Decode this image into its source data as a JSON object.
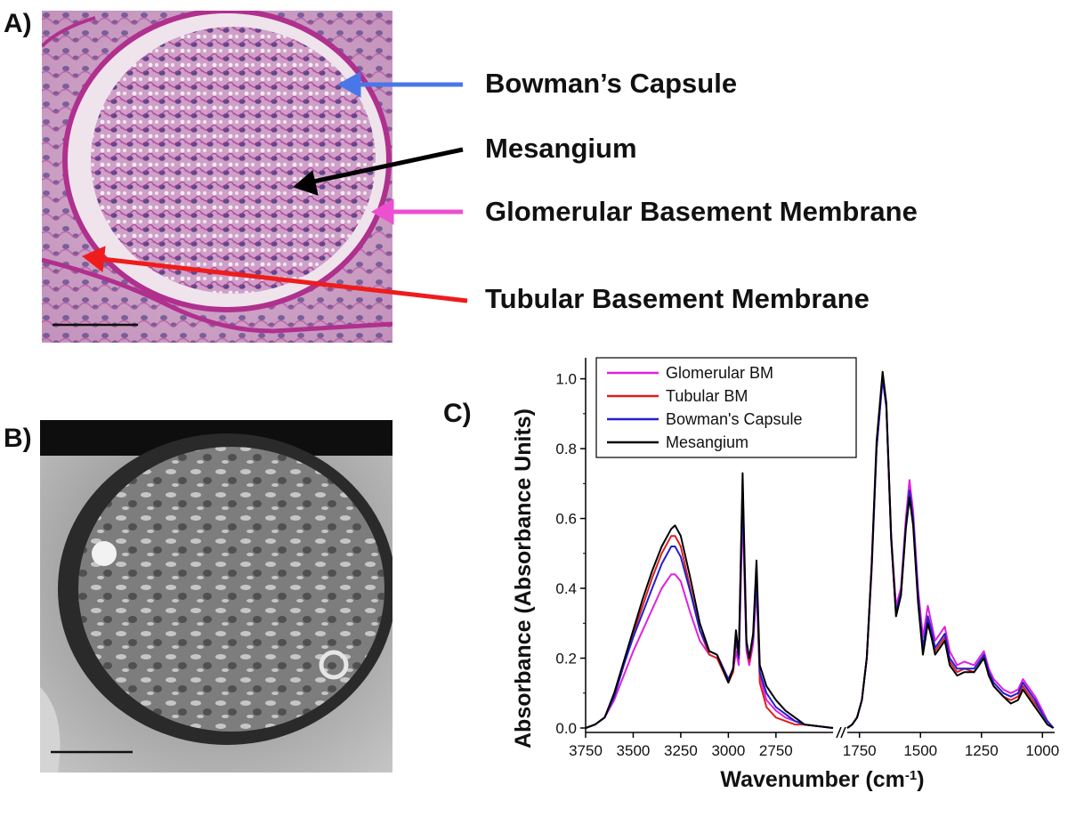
{
  "figure": {
    "panel_a_label": "A)",
    "panel_b_label": "B)",
    "panel_c_label": "C)",
    "annotations": [
      {
        "text": "Bowman’s Capsule",
        "arrow_color": "#4a77e8"
      },
      {
        "text": "Mesangium",
        "arrow_color": "#000000"
      },
      {
        "text": "Glomerular Basement Membrane",
        "arrow_color": "#ec4fd0"
      },
      {
        "text": "Tubular Basement Membrane",
        "arrow_color": "#ee1c1c"
      }
    ]
  },
  "chart_data": {
    "type": "line",
    "xlabel": "Wavenumber (cm",
    "xlabel_sup": "-1",
    "xlabel_end": ")",
    "ylabel": "Absorbance (Absorbance Units)",
    "ylim": [
      0,
      1.05
    ],
    "yticks": [
      "0.0",
      "0.2",
      "0.4",
      "0.6",
      "0.8",
      "1.0"
    ],
    "x_segments": [
      {
        "range": [
          3750,
          2450
        ],
        "ticks": [
          "3750",
          "3500",
          "3250",
          "3000",
          "2750"
        ]
      },
      {
        "range": [
          1800,
          950
        ],
        "ticks": [
          "1750",
          "1500",
          "1250",
          "1000"
        ]
      }
    ],
    "legend_position": "top-left",
    "series": [
      {
        "name": "Glomerular BM",
        "color": "#e020e0",
        "seg1": [
          [
            3750,
            0.0
          ],
          [
            3700,
            0.01
          ],
          [
            3650,
            0.03
          ],
          [
            3600,
            0.08
          ],
          [
            3550,
            0.15
          ],
          [
            3500,
            0.22
          ],
          [
            3450,
            0.28
          ],
          [
            3400,
            0.34
          ],
          [
            3350,
            0.4
          ],
          [
            3300,
            0.44
          ],
          [
            3280,
            0.44
          ],
          [
            3250,
            0.42
          ],
          [
            3200,
            0.33
          ],
          [
            3150,
            0.25
          ],
          [
            3100,
            0.21
          ],
          [
            3060,
            0.2
          ],
          [
            3000,
            0.14
          ],
          [
            2975,
            0.16
          ],
          [
            2960,
            0.22
          ],
          [
            2945,
            0.18
          ],
          [
            2925,
            0.62
          ],
          [
            2905,
            0.22
          ],
          [
            2890,
            0.18
          ],
          [
            2870,
            0.24
          ],
          [
            2852,
            0.4
          ],
          [
            2835,
            0.15
          ],
          [
            2800,
            0.08
          ],
          [
            2750,
            0.05
          ],
          [
            2700,
            0.03
          ],
          [
            2650,
            0.02
          ],
          [
            2600,
            0.01
          ],
          [
            2450,
            0.0
          ]
        ],
        "seg2": [
          [
            1800,
            0.0
          ],
          [
            1780,
            0.01
          ],
          [
            1760,
            0.03
          ],
          [
            1740,
            0.08
          ],
          [
            1720,
            0.2
          ],
          [
            1700,
            0.45
          ],
          [
            1680,
            0.8
          ],
          [
            1655,
            1.0
          ],
          [
            1640,
            0.92
          ],
          [
            1620,
            0.55
          ],
          [
            1600,
            0.35
          ],
          [
            1580,
            0.4
          ],
          [
            1560,
            0.6
          ],
          [
            1545,
            0.71
          ],
          [
            1530,
            0.62
          ],
          [
            1510,
            0.4
          ],
          [
            1490,
            0.26
          ],
          [
            1470,
            0.35
          ],
          [
            1455,
            0.3
          ],
          [
            1440,
            0.25
          ],
          [
            1420,
            0.27
          ],
          [
            1400,
            0.29
          ],
          [
            1380,
            0.22
          ],
          [
            1350,
            0.18
          ],
          [
            1320,
            0.19
          ],
          [
            1280,
            0.18
          ],
          [
            1260,
            0.2
          ],
          [
            1240,
            0.22
          ],
          [
            1220,
            0.17
          ],
          [
            1200,
            0.14
          ],
          [
            1160,
            0.11
          ],
          [
            1130,
            0.1
          ],
          [
            1100,
            0.11
          ],
          [
            1080,
            0.14
          ],
          [
            1060,
            0.12
          ],
          [
            1030,
            0.09
          ],
          [
            1000,
            0.05
          ],
          [
            980,
            0.02
          ],
          [
            955,
            0.0
          ]
        ]
      },
      {
        "name": "Tubular BM",
        "color": "#dd1f1f",
        "seg1": [
          [
            3750,
            0.0
          ],
          [
            3700,
            0.01
          ],
          [
            3650,
            0.03
          ],
          [
            3600,
            0.09
          ],
          [
            3550,
            0.18
          ],
          [
            3500,
            0.27
          ],
          [
            3450,
            0.35
          ],
          [
            3400,
            0.43
          ],
          [
            3350,
            0.5
          ],
          [
            3300,
            0.55
          ],
          [
            3280,
            0.55
          ],
          [
            3250,
            0.52
          ],
          [
            3200,
            0.4
          ],
          [
            3150,
            0.28
          ],
          [
            3100,
            0.21
          ],
          [
            3060,
            0.2
          ],
          [
            3000,
            0.13
          ],
          [
            2975,
            0.16
          ],
          [
            2960,
            0.25
          ],
          [
            2945,
            0.2
          ],
          [
            2925,
            0.7
          ],
          [
            2905,
            0.24
          ],
          [
            2890,
            0.19
          ],
          [
            2870,
            0.26
          ],
          [
            2852,
            0.45
          ],
          [
            2835,
            0.13
          ],
          [
            2800,
            0.06
          ],
          [
            2750,
            0.03
          ],
          [
            2700,
            0.02
          ],
          [
            2650,
            0.01
          ],
          [
            2600,
            0.01
          ],
          [
            2450,
            0.0
          ]
        ],
        "seg2": [
          [
            1800,
            0.0
          ],
          [
            1780,
            0.01
          ],
          [
            1760,
            0.03
          ],
          [
            1740,
            0.08
          ],
          [
            1720,
            0.2
          ],
          [
            1700,
            0.46
          ],
          [
            1680,
            0.8
          ],
          [
            1655,
            1.01
          ],
          [
            1640,
            0.92
          ],
          [
            1620,
            0.54
          ],
          [
            1600,
            0.32
          ],
          [
            1580,
            0.38
          ],
          [
            1560,
            0.58
          ],
          [
            1545,
            0.68
          ],
          [
            1530,
            0.59
          ],
          [
            1510,
            0.37
          ],
          [
            1490,
            0.22
          ],
          [
            1470,
            0.31
          ],
          [
            1455,
            0.27
          ],
          [
            1440,
            0.22
          ],
          [
            1420,
            0.24
          ],
          [
            1400,
            0.26
          ],
          [
            1380,
            0.19
          ],
          [
            1350,
            0.16
          ],
          [
            1320,
            0.17
          ],
          [
            1280,
            0.16
          ],
          [
            1260,
            0.18
          ],
          [
            1240,
            0.21
          ],
          [
            1220,
            0.15
          ],
          [
            1200,
            0.12
          ],
          [
            1160,
            0.09
          ],
          [
            1130,
            0.08
          ],
          [
            1100,
            0.09
          ],
          [
            1080,
            0.12
          ],
          [
            1060,
            0.1
          ],
          [
            1030,
            0.07
          ],
          [
            1000,
            0.04
          ],
          [
            980,
            0.02
          ],
          [
            955,
            0.0
          ]
        ]
      },
      {
        "name": "Bowman's Capsule",
        "color": "#2020d0",
        "seg1": [
          [
            3750,
            0.0
          ],
          [
            3700,
            0.01
          ],
          [
            3650,
            0.03
          ],
          [
            3600,
            0.09
          ],
          [
            3550,
            0.18
          ],
          [
            3500,
            0.26
          ],
          [
            3450,
            0.33
          ],
          [
            3400,
            0.4
          ],
          [
            3350,
            0.47
          ],
          [
            3300,
            0.52
          ],
          [
            3280,
            0.52
          ],
          [
            3250,
            0.49
          ],
          [
            3200,
            0.39
          ],
          [
            3150,
            0.28
          ],
          [
            3100,
            0.22
          ],
          [
            3060,
            0.21
          ],
          [
            3000,
            0.14
          ],
          [
            2975,
            0.17
          ],
          [
            2960,
            0.26
          ],
          [
            2945,
            0.2
          ],
          [
            2925,
            0.67
          ],
          [
            2905,
            0.24
          ],
          [
            2890,
            0.2
          ],
          [
            2870,
            0.26
          ],
          [
            2852,
            0.43
          ],
          [
            2835,
            0.16
          ],
          [
            2800,
            0.1
          ],
          [
            2750,
            0.06
          ],
          [
            2700,
            0.04
          ],
          [
            2650,
            0.02
          ],
          [
            2600,
            0.01
          ],
          [
            2450,
            0.0
          ]
        ],
        "seg2": [
          [
            1800,
            0.0
          ],
          [
            1780,
            0.01
          ],
          [
            1760,
            0.03
          ],
          [
            1740,
            0.08
          ],
          [
            1720,
            0.2
          ],
          [
            1700,
            0.46
          ],
          [
            1680,
            0.8
          ],
          [
            1655,
            1.0
          ],
          [
            1640,
            0.92
          ],
          [
            1620,
            0.54
          ],
          [
            1600,
            0.33
          ],
          [
            1580,
            0.39
          ],
          [
            1560,
            0.58
          ],
          [
            1545,
            0.68
          ],
          [
            1530,
            0.6
          ],
          [
            1510,
            0.38
          ],
          [
            1490,
            0.23
          ],
          [
            1470,
            0.32
          ],
          [
            1455,
            0.28
          ],
          [
            1440,
            0.23
          ],
          [
            1420,
            0.25
          ],
          [
            1400,
            0.27
          ],
          [
            1380,
            0.2
          ],
          [
            1350,
            0.17
          ],
          [
            1320,
            0.17
          ],
          [
            1280,
            0.17
          ],
          [
            1260,
            0.19
          ],
          [
            1240,
            0.21
          ],
          [
            1220,
            0.16
          ],
          [
            1200,
            0.13
          ],
          [
            1160,
            0.1
          ],
          [
            1130,
            0.09
          ],
          [
            1100,
            0.1
          ],
          [
            1080,
            0.13
          ],
          [
            1060,
            0.11
          ],
          [
            1030,
            0.08
          ],
          [
            1000,
            0.04
          ],
          [
            980,
            0.02
          ],
          [
            955,
            0.0
          ]
        ]
      },
      {
        "name": "Mesangium",
        "color": "#000000",
        "seg1": [
          [
            3750,
            0.0
          ],
          [
            3700,
            0.01
          ],
          [
            3650,
            0.03
          ],
          [
            3600,
            0.1
          ],
          [
            3550,
            0.19
          ],
          [
            3500,
            0.28
          ],
          [
            3450,
            0.37
          ],
          [
            3400,
            0.45
          ],
          [
            3350,
            0.52
          ],
          [
            3300,
            0.57
          ],
          [
            3280,
            0.58
          ],
          [
            3250,
            0.55
          ],
          [
            3200,
            0.43
          ],
          [
            3150,
            0.3
          ],
          [
            3100,
            0.22
          ],
          [
            3060,
            0.21
          ],
          [
            3000,
            0.13
          ],
          [
            2975,
            0.17
          ],
          [
            2960,
            0.28
          ],
          [
            2945,
            0.21
          ],
          [
            2925,
            0.73
          ],
          [
            2905,
            0.25
          ],
          [
            2890,
            0.2
          ],
          [
            2870,
            0.27
          ],
          [
            2852,
            0.48
          ],
          [
            2835,
            0.18
          ],
          [
            2800,
            0.12
          ],
          [
            2750,
            0.08
          ],
          [
            2700,
            0.05
          ],
          [
            2650,
            0.03
          ],
          [
            2600,
            0.01
          ],
          [
            2450,
            0.0
          ]
        ],
        "seg2": [
          [
            1800,
            0.0
          ],
          [
            1780,
            0.01
          ],
          [
            1760,
            0.03
          ],
          [
            1740,
            0.08
          ],
          [
            1720,
            0.2
          ],
          [
            1700,
            0.47
          ],
          [
            1680,
            0.82
          ],
          [
            1655,
            1.02
          ],
          [
            1640,
            0.93
          ],
          [
            1620,
            0.55
          ],
          [
            1600,
            0.32
          ],
          [
            1580,
            0.38
          ],
          [
            1560,
            0.57
          ],
          [
            1545,
            0.66
          ],
          [
            1530,
            0.58
          ],
          [
            1510,
            0.36
          ],
          [
            1490,
            0.21
          ],
          [
            1470,
            0.3
          ],
          [
            1455,
            0.26
          ],
          [
            1440,
            0.21
          ],
          [
            1420,
            0.23
          ],
          [
            1400,
            0.25
          ],
          [
            1380,
            0.18
          ],
          [
            1350,
            0.15
          ],
          [
            1320,
            0.16
          ],
          [
            1280,
            0.16
          ],
          [
            1260,
            0.18
          ],
          [
            1240,
            0.2
          ],
          [
            1220,
            0.15
          ],
          [
            1200,
            0.12
          ],
          [
            1160,
            0.09
          ],
          [
            1130,
            0.07
          ],
          [
            1100,
            0.08
          ],
          [
            1080,
            0.11
          ],
          [
            1060,
            0.09
          ],
          [
            1030,
            0.06
          ],
          [
            1000,
            0.03
          ],
          [
            980,
            0.01
          ],
          [
            955,
            0.0
          ]
        ]
      }
    ]
  }
}
